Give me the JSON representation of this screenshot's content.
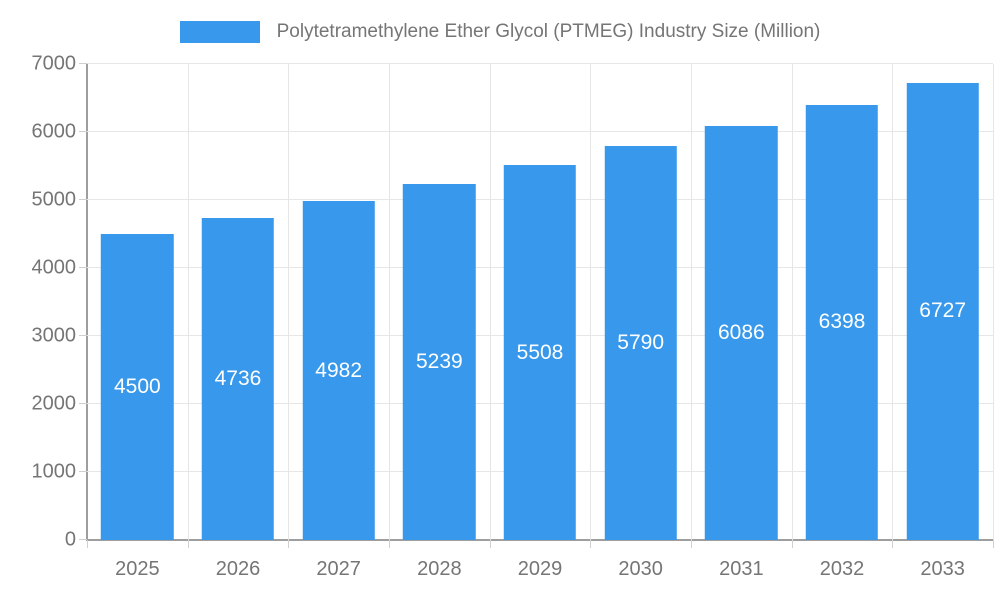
{
  "chart_data": {
    "type": "bar",
    "title": "Polytetramethylene Ether Glycol (PTMEG) Industry Size (Million)",
    "categories": [
      "2025",
      "2026",
      "2027",
      "2028",
      "2029",
      "2030",
      "2031",
      "2032",
      "2033"
    ],
    "values": [
      4500,
      4736,
      4982,
      5239,
      5508,
      5790,
      6086,
      6398,
      6727
    ],
    "xlabel": "",
    "ylabel": "",
    "ylim": [
      0,
      7000
    ],
    "ytick_step": 1000,
    "grid": true,
    "legend_position": "top",
    "bar_width_fraction": 0.72,
    "colors": {
      "bar": "#3899ec",
      "bar_label": "#ffffff",
      "axis_line": "#9e9e9e",
      "gridline": "#e6e6e6",
      "tick": "#cfcfcf",
      "axis_text": "#757575",
      "legend_text": "#757575",
      "background": "#ffffff"
    }
  }
}
